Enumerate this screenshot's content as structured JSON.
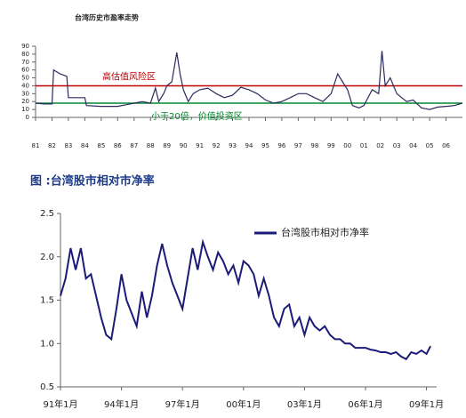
{
  "chart_data": [
    {
      "type": "line",
      "title": "台湾历史市盈率走势",
      "xlim": [
        1981,
        2007
      ],
      "ylim": [
        0,
        90
      ],
      "yticks": [
        0,
        10,
        20,
        30,
        40,
        50,
        60,
        70,
        80,
        90
      ],
      "xticks": [
        {
          "value": 1981,
          "label": "81"
        },
        {
          "value": 1982,
          "label": "82"
        },
        {
          "value": 1983,
          "label": "83"
        },
        {
          "value": 1984,
          "label": "84"
        },
        {
          "value": 1985,
          "label": "85"
        },
        {
          "value": 1986,
          "label": "86"
        },
        {
          "value": 1987,
          "label": "87"
        },
        {
          "value": 1988,
          "label": "88"
        },
        {
          "value": 1989,
          "label": "89"
        },
        {
          "value": 1990,
          "label": "90"
        },
        {
          "value": 1991,
          "label": "91"
        },
        {
          "value": 1992,
          "label": "92"
        },
        {
          "value": 1993,
          "label": "93"
        },
        {
          "value": 1994,
          "label": "94"
        },
        {
          "value": 1995,
          "label": "95"
        },
        {
          "value": 1996,
          "label": "96"
        },
        {
          "value": 1997,
          "label": "97"
        },
        {
          "value": 1998,
          "label": "98"
        },
        {
          "value": 1999,
          "label": "99"
        },
        {
          "value": 2000,
          "label": "00"
        },
        {
          "value": 2001,
          "label": "01"
        },
        {
          "value": 2002,
          "label": "02"
        },
        {
          "value": 2003,
          "label": "03"
        },
        {
          "value": 2004,
          "label": "04"
        },
        {
          "value": 2005,
          "label": "05"
        },
        {
          "value": 2006,
          "label": "06"
        }
      ],
      "x": [
        1981,
        1981.5,
        1982,
        1982.1,
        1982.5,
        1982.9,
        1983,
        1983.5,
        1984,
        1984.1,
        1985,
        1986,
        1986.5,
        1987,
        1987.5,
        1988,
        1988.3,
        1988.5,
        1988.8,
        1989,
        1989.3,
        1989.6,
        1989.8,
        1990,
        1990.3,
        1990.6,
        1991,
        1991.5,
        1992,
        1992.5,
        1993,
        1993.5,
        1994,
        1994.5,
        1995,
        1995.5,
        1996,
        1996.5,
        1997,
        1997.5,
        1998,
        1998.5,
        1999,
        1999.4,
        1999.7,
        2000,
        2000.3,
        2000.7,
        2001,
        2001.5,
        2001.9,
        2002.1,
        2002.3,
        2002.6,
        2003,
        2003.3,
        2003.6,
        2004,
        2004.5,
        2005,
        2005.5,
        2006,
        2006.5,
        2007
      ],
      "series": [
        {
          "color": "#2b2b5e",
          "values": [
            18,
            17,
            17,
            60,
            55,
            52,
            25,
            25,
            25,
            15,
            14,
            14,
            16,
            18,
            20,
            18,
            37,
            20,
            30,
            40,
            45,
            82,
            55,
            35,
            20,
            30,
            35,
            37,
            30,
            25,
            28,
            38,
            35,
            30,
            22,
            18,
            20,
            25,
            30,
            30,
            25,
            20,
            30,
            55,
            45,
            35,
            15,
            12,
            15,
            35,
            30,
            84,
            40,
            50,
            30,
            25,
            20,
            22,
            12,
            10,
            13,
            14,
            15,
            18
          ]
        }
      ],
      "reference_lines": [
        {
          "value": 40,
          "label": "高估值风险区",
          "color": "#c00000"
        },
        {
          "value": 18,
          "label": "小于20倍，价值投资区",
          "color": "#008a2e"
        }
      ]
    },
    {
      "type": "line",
      "title": "图 :台湾股市相对市净率",
      "xlim": [
        1991,
        2009.5
      ],
      "ylim": [
        0.5,
        2.5
      ],
      "yticks": [
        0.5,
        {
          "value": 1,
          "label": "1.0"
        },
        1.5,
        {
          "value": 2,
          "label": "2.0"
        },
        2.5
      ],
      "xticks": [
        {
          "value": 1991,
          "label": "91年1月"
        },
        {
          "value": 1994,
          "label": "94年1月"
        },
        {
          "value": 1997,
          "label": "97年1月"
        },
        {
          "value": 2000,
          "label": "00年1月"
        },
        {
          "value": 2003,
          "label": "03年1月"
        },
        {
          "value": 2006,
          "label": "06年1月"
        },
        {
          "value": 2009,
          "label": "09年1月"
        }
      ],
      "legend": "upper right",
      "x": [
        1991,
        1991.25,
        1991.5,
        1991.75,
        1992,
        1992.25,
        1992.5,
        1992.75,
        1993,
        1993.25,
        1993.5,
        1993.75,
        1994,
        1994.25,
        1994.5,
        1994.75,
        1995,
        1995.25,
        1995.5,
        1995.75,
        1996,
        1996.25,
        1996.5,
        1996.75,
        1997,
        1997.25,
        1997.5,
        1997.75,
        1998,
        1998.25,
        1998.5,
        1998.75,
        1999,
        1999.25,
        1999.5,
        1999.75,
        2000,
        2000.25,
        2000.5,
        2000.75,
        2001,
        2001.25,
        2001.5,
        2001.75,
        2002,
        2002.25,
        2002.5,
        2002.75,
        2003,
        2003.25,
        2003.5,
        2003.75,
        2004,
        2004.25,
        2004.5,
        2004.75,
        2005,
        2005.25,
        2005.5,
        2005.75,
        2006,
        2006.25,
        2006.5,
        2006.75,
        2007,
        2007.25,
        2007.5,
        2007.75,
        2008,
        2008.25,
        2008.5,
        2008.75,
        2009,
        2009.2
      ],
      "series": [
        {
          "name": "台湾股市相对市净率",
          "color": "#1c1c78",
          "values": [
            1.55,
            1.75,
            2.1,
            1.85,
            2.1,
            1.75,
            1.8,
            1.55,
            1.3,
            1.1,
            1.05,
            1.4,
            1.8,
            1.5,
            1.35,
            1.2,
            1.6,
            1.3,
            1.55,
            1.9,
            2.15,
            1.9,
            1.7,
            1.55,
            1.4,
            1.75,
            2.1,
            1.85,
            2.17,
            2.0,
            1.85,
            2.05,
            1.95,
            1.8,
            1.9,
            1.7,
            1.95,
            1.9,
            1.8,
            1.55,
            1.75,
            1.55,
            1.3,
            1.2,
            1.4,
            1.45,
            1.2,
            1.3,
            1.1,
            1.3,
            1.2,
            1.15,
            1.2,
            1.1,
            1.05,
            1.05,
            1.0,
            1.0,
            0.95,
            0.95,
            0.95,
            0.93,
            0.92,
            0.9,
            0.9,
            0.88,
            0.9,
            0.85,
            0.82,
            0.9,
            0.88,
            0.92,
            0.88,
            0.97
          ]
        }
      ]
    }
  ]
}
